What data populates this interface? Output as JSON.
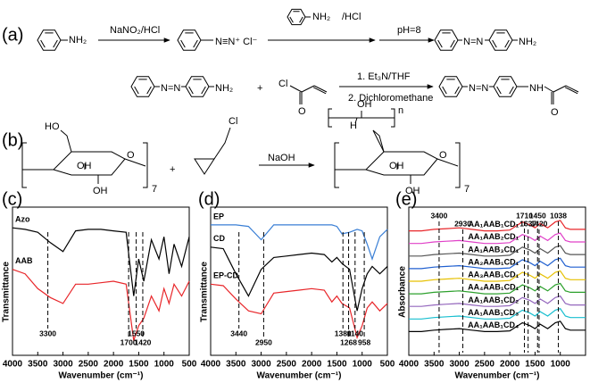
{
  "scheme": {
    "texts": [
      "(a)",
      "NH₂",
      "NaNO₂/HCl",
      "N≡N⁺ Cl⁻",
      "NH₂",
      "/HCl",
      "pH=8",
      "N=N",
      "NH₂",
      "N=N",
      "NH₂",
      "+",
      "Cl",
      "O",
      "1. Et₃N/THF",
      "2. Dichloromethane",
      "N=N",
      "NH",
      "O",
      "(b)",
      "HO",
      "OH",
      "OH",
      "O",
      "7",
      "+",
      "Cl",
      "NaOH",
      "OH",
      "H",
      "n",
      "OH",
      "OH",
      "O",
      "7"
    ]
  },
  "chart_data": [
    {
      "type": "line",
      "panel_label": "(c)",
      "xlabel": "Wavenumber (cm⁻¹)",
      "ylabel": "Transmittance",
      "xlim": [
        4000,
        500
      ],
      "xticks": [
        4000,
        3500,
        3000,
        2500,
        2000,
        1500,
        1000,
        500
      ],
      "ylim": [
        0,
        10
      ],
      "x": [
        4000,
        3750,
        3500,
        3250,
        3000,
        2750,
        2500,
        2250,
        2000,
        1750,
        1600,
        1500,
        1400,
        1250,
        1100,
        1000,
        900,
        800,
        650,
        500
      ],
      "series": [
        {
          "name": "Azo",
          "color": "#000000",
          "values": [
            8.6,
            8.5,
            8.3,
            7.6,
            7.0,
            8.4,
            8.5,
            8.5,
            8.4,
            8.3,
            4.0,
            6.5,
            5.0,
            7.8,
            6.5,
            8.0,
            5.5,
            7.5,
            6.0,
            8.0
          ]
        },
        {
          "name": "AAB",
          "color": "#e8262a",
          "values": [
            5.8,
            5.5,
            4.5,
            3.9,
            3.5,
            4.8,
            4.8,
            4.9,
            5.0,
            4.8,
            1.0,
            2.0,
            2.5,
            4.0,
            3.0,
            4.5,
            3.5,
            4.8,
            4.0,
            5.0
          ]
        }
      ],
      "markers": [
        3300,
        1700,
        1550,
        1420
      ]
    },
    {
      "type": "line",
      "panel_label": "(d)",
      "xlabel": "Wavenumber (cm⁻¹)",
      "ylabel": "Transmittance",
      "xlim": [
        4000,
        500
      ],
      "xticks": [
        4000,
        3500,
        3000,
        2500,
        2000,
        1500,
        1000,
        500
      ],
      "ylim": [
        0,
        10
      ],
      "x": [
        4000,
        3750,
        3500,
        3250,
        3000,
        2750,
        2500,
        2250,
        2000,
        1750,
        1600,
        1500,
        1400,
        1250,
        1100,
        1000,
        900,
        800,
        650,
        500
      ],
      "series": [
        {
          "name": "EP",
          "color": "#3a7fd5",
          "values": [
            8.8,
            8.8,
            8.8,
            8.7,
            7.8,
            8.8,
            8.8,
            8.8,
            8.8,
            8.8,
            8.8,
            8.7,
            8.2,
            8.3,
            8.5,
            8.4,
            7.5,
            6.5,
            8.0,
            8.5
          ]
        },
        {
          "name": "CD",
          "color": "#000000",
          "values": [
            7.3,
            7.2,
            5.5,
            4.0,
            5.8,
            6.6,
            6.7,
            6.8,
            6.9,
            6.8,
            6.3,
            6.6,
            6.2,
            5.8,
            3.0,
            4.5,
            5.5,
            6.0,
            5.5,
            6.0
          ]
        },
        {
          "name": "EP-CD",
          "color": "#e8262a",
          "values": [
            4.8,
            4.7,
            3.8,
            3.0,
            2.8,
            4.2,
            4.3,
            4.4,
            4.5,
            4.4,
            3.6,
            4.0,
            3.5,
            3.2,
            1.2,
            2.0,
            3.2,
            3.6,
            3.0,
            3.5
          ]
        }
      ],
      "markers": [
        3440,
        2950,
        1380,
        1268,
        1140,
        958
      ]
    },
    {
      "type": "line",
      "panel_label": "(e)",
      "xlabel": "Wavenumber (cm⁻¹)",
      "ylabel": "Absorbance",
      "xlim": [
        4000,
        500
      ],
      "xticks": [
        4000,
        3500,
        3000,
        2500,
        2000,
        1500,
        1000
      ],
      "ylim": [
        0,
        10
      ],
      "x": [
        4000,
        3750,
        3500,
        3250,
        3000,
        2750,
        2500,
        2250,
        2000,
        1750,
        1600,
        1500,
        1400,
        1250,
        1100,
        1000,
        900,
        800,
        650,
        500
      ],
      "series": [
        {
          "name": "AA₁AAB₁CD₁",
          "color": "#e8262a",
          "values": [
            8.4,
            8.4,
            8.5,
            8.55,
            8.6,
            8.5,
            8.4,
            8.4,
            8.45,
            9.0,
            8.8,
            8.6,
            8.9,
            8.6,
            9.0,
            9.1,
            8.6,
            8.5,
            8.5,
            8.5
          ]
        },
        {
          "name": "AA₁AAB₂CD₁",
          "color": "#e040c8",
          "values": [
            7.55,
            7.55,
            7.65,
            7.7,
            7.75,
            7.65,
            7.55,
            7.55,
            7.6,
            8.15,
            7.95,
            7.75,
            8.05,
            7.75,
            8.15,
            8.25,
            7.75,
            7.65,
            7.65,
            7.65
          ]
        },
        {
          "name": "AA₁AAB₃CD₁",
          "color": "#555555",
          "values": [
            6.7,
            6.7,
            6.8,
            6.85,
            6.9,
            6.8,
            6.7,
            6.7,
            6.75,
            7.3,
            7.1,
            6.9,
            7.2,
            6.9,
            7.3,
            7.4,
            6.9,
            6.8,
            6.8,
            6.8
          ]
        },
        {
          "name": "AA₂AAB₁CD₁",
          "color": "#1f5fd0",
          "values": [
            5.85,
            5.85,
            5.95,
            6.0,
            6.05,
            5.95,
            5.85,
            5.85,
            5.9,
            6.45,
            6.25,
            6.05,
            6.35,
            6.05,
            6.45,
            6.55,
            6.05,
            5.95,
            5.95,
            5.95
          ]
        },
        {
          "name": "AA₃AAB₁CD₁",
          "color": "#e6c000",
          "values": [
            5.0,
            5.0,
            5.1,
            5.15,
            5.2,
            5.1,
            5.0,
            5.0,
            5.05,
            5.6,
            5.4,
            5.2,
            5.5,
            5.2,
            5.6,
            5.7,
            5.2,
            5.1,
            5.1,
            5.1
          ]
        },
        {
          "name": "AA₄AAB₁CD₁",
          "color": "#2ca02c",
          "values": [
            4.15,
            4.15,
            4.25,
            4.3,
            4.35,
            4.25,
            4.15,
            4.15,
            4.2,
            4.75,
            4.55,
            4.35,
            4.65,
            4.35,
            4.75,
            4.85,
            4.35,
            4.25,
            4.25,
            4.25
          ]
        },
        {
          "name": "AA₁AAB₁CD₂",
          "color": "#9467bd",
          "values": [
            3.3,
            3.3,
            3.4,
            3.45,
            3.5,
            3.4,
            3.3,
            3.3,
            3.35,
            3.9,
            3.7,
            3.5,
            3.8,
            3.5,
            3.9,
            4.0,
            3.5,
            3.4,
            3.4,
            3.4
          ]
        },
        {
          "name": "AA₁AAB₁CD₃",
          "color": "#17becf",
          "values": [
            2.45,
            2.45,
            2.55,
            2.6,
            2.65,
            2.55,
            2.45,
            2.45,
            2.5,
            3.05,
            2.85,
            2.65,
            2.95,
            2.65,
            3.05,
            3.15,
            2.65,
            2.55,
            2.55,
            2.55
          ]
        },
        {
          "name": "AA₁AAB₁CD₄",
          "color": "#000000",
          "values": [
            1.6,
            1.6,
            1.7,
            1.75,
            1.8,
            1.7,
            1.6,
            1.6,
            1.65,
            2.2,
            2.0,
            1.8,
            2.1,
            1.8,
            2.2,
            2.3,
            1.8,
            1.7,
            1.7,
            1.7
          ]
        }
      ],
      "markers": [
        3400,
        2930,
        1710,
        1637,
        1450,
        1420,
        1038
      ]
    }
  ]
}
